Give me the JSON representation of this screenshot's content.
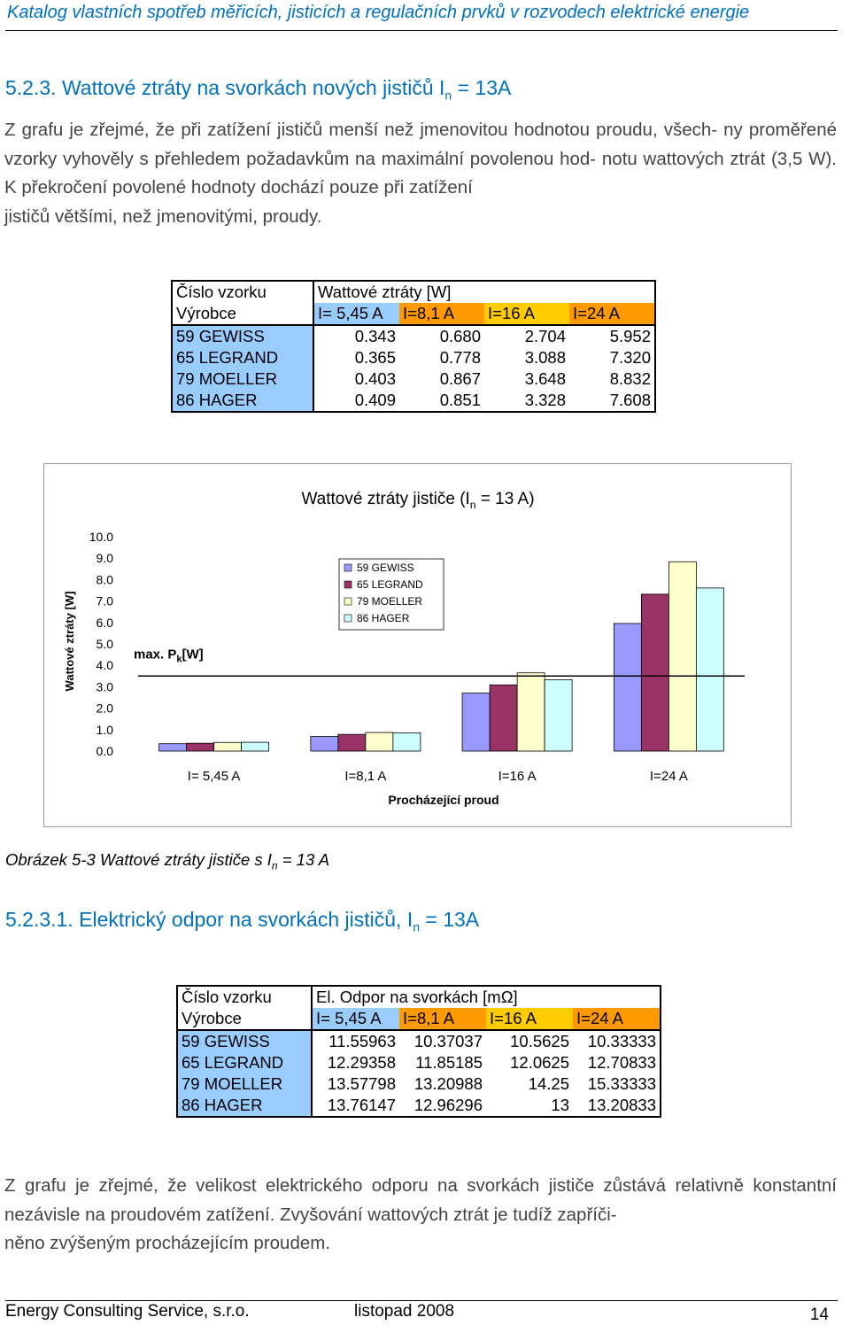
{
  "header": {
    "title": "Katalog vlastních spotřeb měřicích, jisticích a regulačních prvků v rozvodech elektrické energie"
  },
  "section1": {
    "number": "5.2.3.",
    "title": "Wattové ztráty na svorkách nových jističů I",
    "sub": "n",
    "tail": " = 13A"
  },
  "paragraph1": {
    "lines": [
      "Z grafu je zřejmé, že při zatížení jističů menší než jmenovitou hodnotou proudu, všech-",
      "ny proměřené vzorky vyhověly s přehledem požadavkům na maximální povolenou hod-",
      "notu wattových ztrát (3,5 W). K překročení povolené hodnoty dochází pouze při zatížení",
      "jističů většími, než jmenovitými, proudy."
    ]
  },
  "table1": {
    "h1_left": "Číslo vzorku",
    "h1_right": "Wattové ztráty [W]",
    "h2_left": "Výrobce",
    "columns": [
      "I= 5,45 A",
      "I=8,1 A",
      "I=16 A",
      "I=24 A"
    ],
    "rows": [
      {
        "name": "59 GEWISS",
        "values": [
          "0.343",
          "0.680",
          "2.704",
          "5.952"
        ]
      },
      {
        "name": "65 LEGRAND",
        "values": [
          "0.365",
          "0.778",
          "3.088",
          "7.320"
        ]
      },
      {
        "name": "79 MOELLER",
        "values": [
          "0.403",
          "0.867",
          "3.648",
          "8.832"
        ]
      },
      {
        "name": "86 HAGER",
        "values": [
          "0.409",
          "0.851",
          "3.328",
          "7.608"
        ]
      }
    ]
  },
  "chart_data": {
    "type": "bar",
    "title": "Wattové ztráty jističe (I",
    "title_sub": "n",
    "title_tail": " = 13 A)",
    "xlabel": "Procházející proud",
    "ylabel": "Wattové ztráty [W]",
    "ylim": [
      0,
      10
    ],
    "yticks": [
      "0.0",
      "1.0",
      "2.0",
      "3.0",
      "4.0",
      "5.0",
      "6.0",
      "7.0",
      "8.0",
      "9.0",
      "10.0"
    ],
    "categories": [
      "I= 5,45 A",
      "I=8,1 A",
      "I=16 A",
      "I=24 A"
    ],
    "series": [
      {
        "name": "59 GEWISS",
        "color": "#9999ff",
        "values": [
          0.343,
          0.68,
          2.704,
          5.952
        ]
      },
      {
        "name": "65 LEGRAND",
        "color": "#993366",
        "values": [
          0.365,
          0.778,
          3.088,
          7.32
        ]
      },
      {
        "name": "79 MOELLER",
        "color": "#ffffcc",
        "values": [
          0.403,
          0.867,
          3.648,
          8.832
        ]
      },
      {
        "name": "86 HAGER",
        "color": "#ccffff",
        "values": [
          0.409,
          0.851,
          3.328,
          7.608
        ]
      }
    ],
    "limit_line": {
      "value": 3.5,
      "label": "max. P",
      "label_sub": "k",
      "label_tail": "[W]"
    },
    "legend": "top-center",
    "grid": false
  },
  "caption": {
    "text": "Obrázek 5-3 Wattové ztráty jističe s I",
    "sub": "n",
    "tail": " = 13 A"
  },
  "section2": {
    "number": "5.2.3.1.",
    "title": "Elektrický odpor na svorkách jističů, I",
    "sub": "n",
    "tail": " = 13A"
  },
  "table2": {
    "h1_left": "Číslo vzorku",
    "h1_right": "El. Odpor na svorkách  [mΩ]",
    "h2_left": "Výrobce",
    "columns": [
      "I= 5,45 A",
      "I=8,1 A",
      "I=16 A",
      "I=24 A"
    ],
    "rows": [
      {
        "name": "59 GEWISS",
        "values": [
          "11.55963",
          "10.37037",
          "10.5625",
          "10.33333"
        ]
      },
      {
        "name": "65 LEGRAND",
        "values": [
          "12.29358",
          "11.85185",
          "12.0625",
          "12.70833"
        ]
      },
      {
        "name": "79 MOELLER",
        "values": [
          "13.57798",
          "13.20988",
          "14.25",
          "15.33333"
        ]
      },
      {
        "name": "86 HAGER",
        "values": [
          "13.76147",
          "12.96296",
          "13",
          "13.20833"
        ]
      }
    ]
  },
  "paragraph2": {
    "lines": [
      "Z grafu je zřejmé, že velikost elektrického odporu na svorkách jističe zůstává relativně",
      "konstantní nezávisle na proudovém zatížení. Zvyšování wattových ztrát je tudíž zapříči-",
      "něno zvýšeným procházejícím proudem."
    ]
  },
  "footer": {
    "company": "Energy Consulting Service, s.r.o.",
    "date": "listopad 2008",
    "page": "14"
  }
}
